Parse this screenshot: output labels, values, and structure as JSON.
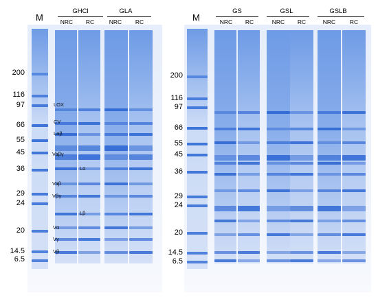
{
  "left_panel": {
    "marker_label": "M",
    "mw_labels": [
      "200",
      "116",
      "97",
      "66",
      "55",
      "45",
      "36",
      "29",
      "24",
      "20",
      "14.5",
      "6.5"
    ],
    "groups": [
      {
        "name": "GHCl",
        "lanes": [
          "NRC",
          "RC"
        ]
      },
      {
        "name": "GLA",
        "lanes": [
          "NRC",
          "RC"
        ]
      }
    ],
    "band_labels": [
      "LOX",
      "CV",
      "Laβ",
      "Vaβγ",
      "Lα",
      "Vaβ",
      "Vβγ",
      "Lβ",
      "Vα",
      "Vγ",
      "Vβ"
    ]
  },
  "right_panel": {
    "marker_label": "M",
    "mw_labels": [
      "200",
      "116",
      "97",
      "66",
      "55",
      "45",
      "36",
      "29",
      "24",
      "20",
      "14.5",
      "6.5"
    ],
    "groups": [
      {
        "name": "GS",
        "lanes": [
          "NRC",
          "RC"
        ]
      },
      {
        "name": "GSL",
        "lanes": [
          "NRC",
          "RC"
        ]
      },
      {
        "name": "GSLB",
        "lanes": [
          "NRC",
          "RC"
        ]
      }
    ]
  },
  "colors": {
    "gel_bg": "#eef3fb",
    "band": "#1a58cf",
    "smear": "#6e9be6"
  }
}
